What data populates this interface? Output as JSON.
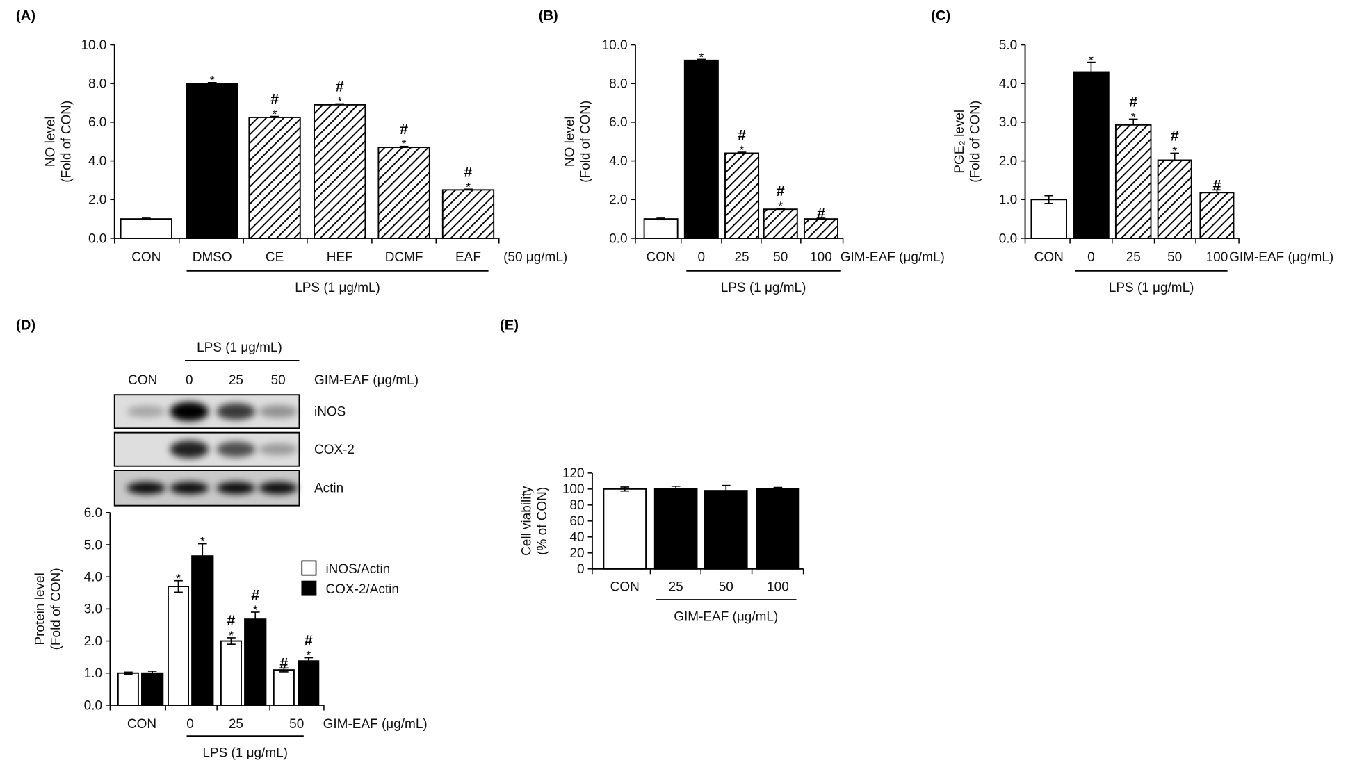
{
  "chart_data": [
    {
      "panel": "(A)",
      "type": "bar",
      "ylabel_line1": "NO level",
      "ylabel_line2": "(Fold of CON)",
      "ylim": [
        0,
        10
      ],
      "yticks": [
        "0.0",
        "2.0",
        "4.0",
        "6.0",
        "8.0",
        "10.0"
      ],
      "categories": [
        "CON",
        "DMSO",
        "CE",
        "HEF",
        "DCMF",
        "EAF"
      ],
      "values": [
        1.0,
        8.0,
        6.25,
        6.9,
        4.7,
        2.5
      ],
      "errors": [
        0.04,
        0.05,
        0.05,
        0.05,
        0.05,
        0.04
      ],
      "fills": [
        "white",
        "black",
        "hatch",
        "hatch",
        "hatch",
        "hatch"
      ],
      "stars": [
        "",
        "*",
        "*",
        "*",
        "*",
        "*"
      ],
      "hashes": [
        "",
        "",
        "#",
        "#",
        "#",
        "#"
      ],
      "unit_label": "(50 μg/mL)",
      "group_label": "LPS (1 μg/mL)"
    },
    {
      "panel": "(B)",
      "type": "bar",
      "ylabel_line1": "NO level",
      "ylabel_line2": "(Fold of CON)",
      "ylim": [
        0,
        10
      ],
      "yticks": [
        "0.0",
        "2.0",
        "4.0",
        "6.0",
        "8.0",
        "10.0"
      ],
      "categories": [
        "CON",
        "0",
        "25",
        "50",
        "100"
      ],
      "values": [
        1.0,
        9.2,
        4.4,
        1.5,
        1.0
      ],
      "errors": [
        0.04,
        0.05,
        0.05,
        0.05,
        0.04
      ],
      "fills": [
        "white",
        "black",
        "hatch",
        "hatch",
        "hatch"
      ],
      "stars": [
        "",
        "*",
        "*",
        "*",
        ""
      ],
      "hashes": [
        "",
        "",
        "#",
        "#",
        "#"
      ],
      "unit_label": "GIM-EAF (μg/mL)",
      "group_label": "LPS (1 μg/mL)"
    },
    {
      "panel": "(C)",
      "type": "bar",
      "ylabel_line1": "PGE₂ level",
      "ylabel_line2": "(Fold of CON)",
      "ylim": [
        0,
        5
      ],
      "yticks": [
        "0.0",
        "1.0",
        "2.0",
        "3.0",
        "4.0",
        "5.0"
      ],
      "categories": [
        "CON",
        "0",
        "25",
        "50",
        "100"
      ],
      "values": [
        1.0,
        4.3,
        2.93,
        2.02,
        1.18
      ],
      "errors": [
        0.1,
        0.25,
        0.15,
        0.18,
        0.07
      ],
      "fills": [
        "white",
        "black",
        "hatch",
        "hatch",
        "hatch"
      ],
      "stars": [
        "",
        "*",
        "*",
        "*",
        ""
      ],
      "hashes": [
        "",
        "",
        "#",
        "#",
        "#"
      ],
      "unit_label": "GIM-EAF (μg/mL)",
      "group_label": "LPS (1 μg/mL)"
    },
    {
      "panel": "(D)",
      "type": "bar",
      "ylabel_line1": "Protein level",
      "ylabel_line2": "(Fold of CON)",
      "ylim": [
        0,
        6
      ],
      "yticks": [
        "0.0",
        "1.0",
        "2.0",
        "3.0",
        "4.0",
        "5.0",
        "6.0"
      ],
      "categories": [
        "CON",
        "0",
        "25",
        "50"
      ],
      "series": [
        {
          "name": "iNOS/Actin",
          "fill": "white",
          "values": [
            1.0,
            3.7,
            2.0,
            1.1
          ],
          "errors": [
            0.03,
            0.18,
            0.1,
            0.06
          ],
          "stars": [
            "",
            "*",
            "*",
            ""
          ],
          "hashes": [
            "",
            "",
            "#",
            "#"
          ]
        },
        {
          "name": "COX-2/Actin",
          "fill": "black",
          "values": [
            1.0,
            4.65,
            2.68,
            1.38
          ],
          "errors": [
            0.06,
            0.38,
            0.22,
            0.1
          ],
          "stars": [
            "",
            "*",
            "*",
            "*"
          ],
          "hashes": [
            "",
            "",
            "#",
            "#"
          ]
        }
      ],
      "legend_position": "right",
      "unit_label": "GIM-EAF (μg/mL)",
      "group_label": "LPS (1 μg/mL)"
    },
    {
      "panel": "(E)",
      "type": "bar",
      "ylabel_line1": "Cell viability",
      "ylabel_line2": "(% of CON)",
      "ylim": [
        0,
        120
      ],
      "yticks": [
        "0",
        "20",
        "40",
        "60",
        "80",
        "100",
        "120"
      ],
      "categories": [
        "CON",
        "25",
        "50",
        "100"
      ],
      "values": [
        100,
        100,
        98,
        100
      ],
      "errors": [
        2.5,
        3.5,
        6.5,
        2
      ],
      "fills": [
        "white",
        "black",
        "black",
        "black"
      ],
      "stars": [
        "",
        "",
        "",
        ""
      ],
      "hashes": [
        "",
        "",
        "",
        ""
      ],
      "group_label": "GIM-EAF (μg/mL)"
    }
  ],
  "western_blot": {
    "header_group": "LPS (1 μg/mL)",
    "lanes": [
      "CON",
      "0",
      "25",
      "50"
    ],
    "treatment_label": "GIM-EAF (μg/mL)",
    "rows": [
      {
        "name": "iNOS",
        "intensity": [
          0.25,
          1.0,
          0.75,
          0.35
        ]
      },
      {
        "name": "COX-2",
        "intensity": [
          0.0,
          0.85,
          0.65,
          0.3
        ]
      },
      {
        "name": "Actin",
        "intensity": [
          0.95,
          0.95,
          0.95,
          0.95
        ]
      }
    ]
  }
}
